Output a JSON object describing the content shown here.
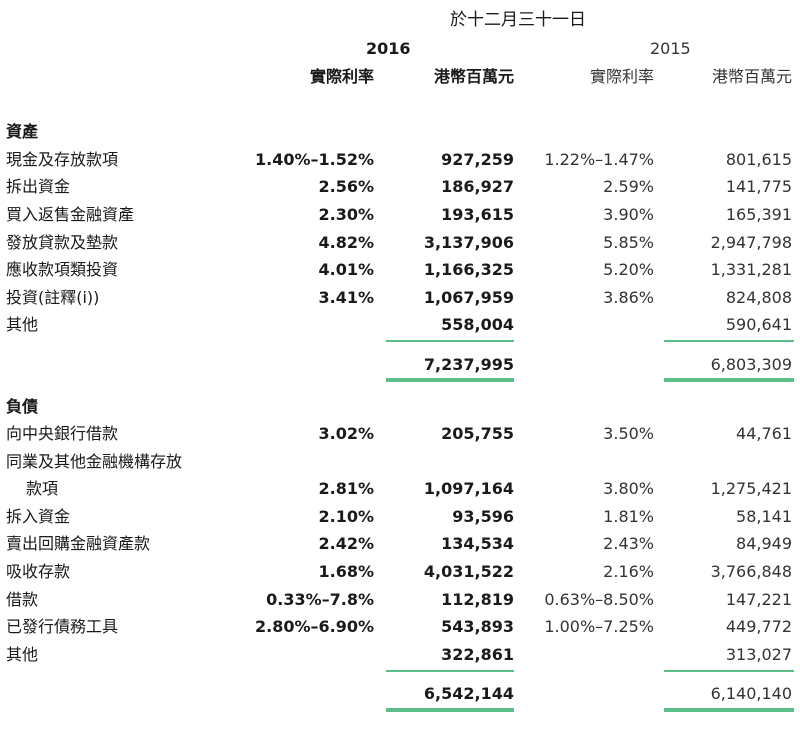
{
  "header": {
    "period": "於十二月三十一日",
    "year_current": "2016",
    "year_prior": "2015",
    "col_rate": "實際利率",
    "col_amount": "港幣百萬元"
  },
  "assets": {
    "heading": "資產",
    "rows": [
      {
        "label": "現金及存放款項",
        "rate_2016": "1.40%–1.52%",
        "amt_2016": "927,259",
        "rate_2015": "1.22%–1.47%",
        "amt_2015": "801,615"
      },
      {
        "label": "拆出資金",
        "rate_2016": "2.56%",
        "amt_2016": "186,927",
        "rate_2015": "2.59%",
        "amt_2015": "141,775"
      },
      {
        "label": "買入返售金融資產",
        "rate_2016": "2.30%",
        "amt_2016": "193,615",
        "rate_2015": "3.90%",
        "amt_2015": "165,391"
      },
      {
        "label": "發放貸款及墊款",
        "rate_2016": "4.82%",
        "amt_2016": "3,137,906",
        "rate_2015": "5.85%",
        "amt_2015": "2,947,798"
      },
      {
        "label": "應收款項類投資",
        "rate_2016": "4.01%",
        "amt_2016": "1,166,325",
        "rate_2015": "5.20%",
        "amt_2015": "1,331,281"
      },
      {
        "label": "投資(註釋(i))",
        "rate_2016": "3.41%",
        "amt_2016": "1,067,959",
        "rate_2015": "3.86%",
        "amt_2015": "824,808"
      },
      {
        "label": "其他",
        "rate_2016": "",
        "amt_2016": "558,004",
        "rate_2015": "",
        "amt_2015": "590,641"
      }
    ],
    "total_2016": "7,237,995",
    "total_2015": "6,803,309"
  },
  "liabilities": {
    "heading": "負債",
    "rows": [
      {
        "label": "向中央銀行借款",
        "rate_2016": "3.02%",
        "amt_2016": "205,755",
        "rate_2015": "3.50%",
        "amt_2015": "44,761"
      },
      {
        "label": "同業及其他金融機構存放",
        "label2": "款項",
        "rate_2016": "2.81%",
        "amt_2016": "1,097,164",
        "rate_2015": "3.80%",
        "amt_2015": "1,275,421"
      },
      {
        "label": "拆入資金",
        "rate_2016": "2.10%",
        "amt_2016": "93,596",
        "rate_2015": "1.81%",
        "amt_2015": "58,141"
      },
      {
        "label": "賣出回購金融資產款",
        "rate_2016": "2.42%",
        "amt_2016": "134,534",
        "rate_2015": "2.43%",
        "amt_2015": "84,949"
      },
      {
        "label": "吸收存款",
        "rate_2016": "1.68%",
        "amt_2016": "4,031,522",
        "rate_2015": "2.16%",
        "amt_2015": "3,766,848"
      },
      {
        "label": "借款",
        "rate_2016": "0.33%–7.8%",
        "amt_2016": "112,819",
        "rate_2015": "0.63%–8.50%",
        "amt_2015": "147,221"
      },
      {
        "label": "已發行債務工具",
        "rate_2016": "2.80%–6.90%",
        "amt_2016": "543,893",
        "rate_2015": "1.00%–7.25%",
        "amt_2015": "449,772"
      },
      {
        "label": "其他",
        "rate_2016": "",
        "amt_2016": "322,861",
        "rate_2015": "",
        "amt_2015": "313,027"
      }
    ],
    "total_2016": "6,542,144",
    "total_2015": "6,140,140"
  }
}
